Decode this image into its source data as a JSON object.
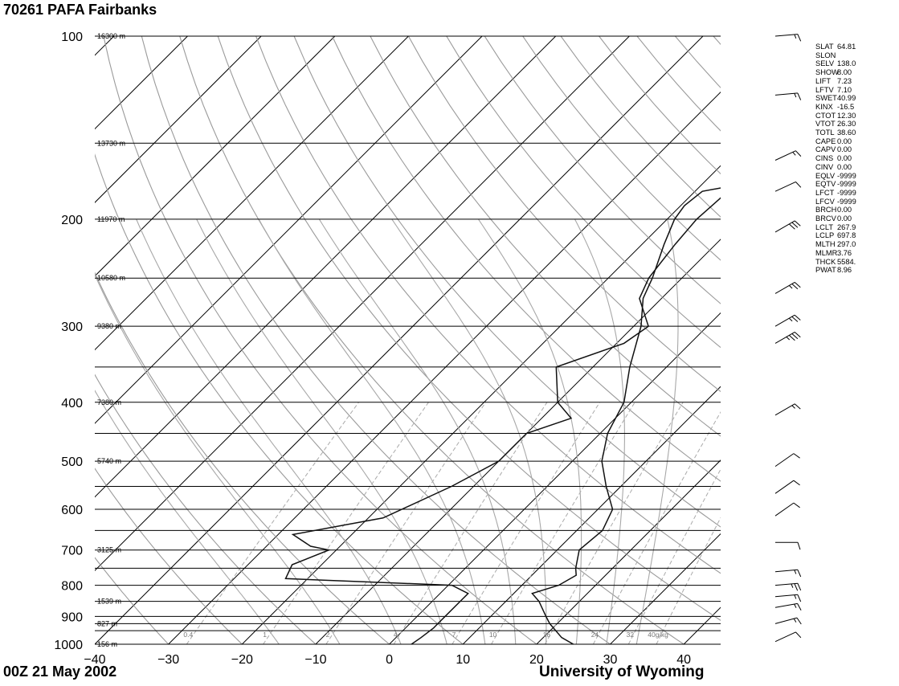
{
  "title": "70261 PAFA Fairbanks",
  "date_label": "00Z 21 May 2002",
  "credit": "University of Wyoming",
  "indices": [
    {
      "name": "SLAT",
      "value": "64.81"
    },
    {
      "name": "SLON",
      "value": ""
    },
    {
      "name": "SELV",
      "value": "138.0"
    },
    {
      "name": "SHOW",
      "value": "8.00"
    },
    {
      "name": "LIFT",
      "value": "7.23"
    },
    {
      "name": "LFTV",
      "value": "7.10"
    },
    {
      "name": "SWET",
      "value": "40.99"
    },
    {
      "name": "KINX",
      "value": "-16.5"
    },
    {
      "name": "CTOT",
      "value": "12.30"
    },
    {
      "name": "VTOT",
      "value": "26.30"
    },
    {
      "name": "TOTL",
      "value": "38.60"
    },
    {
      "name": "CAPE",
      "value": "0.00"
    },
    {
      "name": "CAPV",
      "value": "0.00"
    },
    {
      "name": "CINS",
      "value": "0.00"
    },
    {
      "name": "CINV",
      "value": "0.00"
    },
    {
      "name": "EQLV",
      "value": "-9999"
    },
    {
      "name": "EQTV",
      "value": "-9999"
    },
    {
      "name": "LFCT",
      "value": "-9999"
    },
    {
      "name": "LFCV",
      "value": "-9999"
    },
    {
      "name": "BRCH",
      "value": "0.00"
    },
    {
      "name": "BRCV",
      "value": "0.00"
    },
    {
      "name": "LCLT",
      "value": "267.9"
    },
    {
      "name": "LCLP",
      "value": "697.8"
    },
    {
      "name": "MLTH",
      "value": "297.0"
    },
    {
      "name": "MLMR",
      "value": "3.76"
    },
    {
      "name": "THCK",
      "value": "5584."
    },
    {
      "name": "PWAT",
      "value": "8.96"
    }
  ],
  "chart_data": {
    "type": "line",
    "title": "70261 PAFA Fairbanks",
    "xlabel": "",
    "ylabel": "",
    "xlim": [
      -40,
      45
    ],
    "ylim": [
      1000,
      100
    ],
    "y_scale": "log",
    "x_ticks": [
      "−40",
      "−30",
      "−20",
      "−10",
      "0",
      "10",
      "20",
      "30",
      "40"
    ],
    "pressure_labels": [
      "100",
      "200",
      "300",
      "400",
      "500",
      "600",
      "700",
      "800",
      "900",
      "1000"
    ],
    "height_labels": [
      {
        "p": 100,
        "text": "16300 m"
      },
      {
        "p": 150,
        "text": "13730 m"
      },
      {
        "p": 200,
        "text": "11970 m"
      },
      {
        "p": 250,
        "text": "10580 m"
      },
      {
        "p": 300,
        "text": "9380 m"
      },
      {
        "p": 400,
        "text": "7380 m"
      },
      {
        "p": 500,
        "text": "5740 m"
      },
      {
        "p": 700,
        "text": "3125 m"
      },
      {
        "p": 850,
        "text": "1539 m"
      },
      {
        "p": 925,
        "text": "827 m"
      },
      {
        "p": 1000,
        "text": "156 m"
      }
    ],
    "mixing_ratio_labels": [
      "0.4",
      "1",
      "2",
      "4",
      "7",
      "10",
      "16",
      "24",
      "32",
      "40g/kg"
    ],
    "series": [
      {
        "name": "",
        "color": "#111111",
        "points": [
          [
            1000,
            3.0
          ],
          [
            975,
            3.4
          ],
          [
            940,
            3.8
          ],
          [
            925,
            3.8
          ],
          [
            905,
            3.8
          ],
          [
            850,
            3.8
          ],
          [
            825,
            3.8
          ],
          [
            800,
            0.5
          ],
          [
            780,
            -23.0
          ],
          [
            740,
            -24.0
          ],
          [
            700,
            -21.0
          ],
          [
            690,
            -24.0
          ],
          [
            660,
            -28.0
          ],
          [
            620,
            -18.0
          ],
          [
            550,
            -13.0
          ],
          [
            500,
            -10.0
          ],
          [
            450,
            -10.0
          ],
          [
            425,
            -6.0
          ],
          [
            400,
            -10.0
          ],
          [
            350,
            -15.0
          ],
          [
            320,
            -9.0
          ],
          [
            300,
            -8.0
          ],
          [
            270,
            -13.0
          ],
          [
            250,
            -14.5
          ],
          [
            220,
            -15.5
          ],
          [
            200,
            -16.0
          ],
          [
            180,
            -15.5
          ],
          [
            170,
            -9.0
          ],
          [
            150,
            -6.0
          ],
          [
            120,
            -5.0
          ],
          [
            100,
            -3.5
          ]
        ]
      },
      {
        "name": "",
        "color": "#111111",
        "points": [
          [
            1000,
            25.0
          ],
          [
            975,
            22.5
          ],
          [
            925,
            19.0
          ],
          [
            900,
            17.5
          ],
          [
            850,
            14.5
          ],
          [
            825,
            12.5
          ],
          [
            800,
            15.0
          ],
          [
            770,
            16.0
          ],
          [
            750,
            15.0
          ],
          [
            700,
            13.0
          ],
          [
            650,
            13.5
          ],
          [
            600,
            12.0
          ],
          [
            550,
            8.0
          ],
          [
            500,
            4.0
          ],
          [
            450,
            1.0
          ],
          [
            400,
            -1.0
          ],
          [
            350,
            -5.0
          ],
          [
            300,
            -9.0
          ],
          [
            270,
            -12.5
          ],
          [
            250,
            -14.0
          ],
          [
            220,
            -17.0
          ],
          [
            200,
            -19.0
          ],
          [
            190,
            -19.5
          ],
          [
            180,
            -19.0
          ],
          [
            170,
            -10.0
          ],
          [
            150,
            0.0
          ],
          [
            140,
            -5.0
          ],
          [
            120,
            -7.0
          ],
          [
            100,
            -10.5
          ]
        ]
      }
    ],
    "wind_barbs": [
      {
        "p": 100,
        "dir": 265,
        "kt": 15
      },
      {
        "p": 125,
        "dir": 265,
        "kt": 15
      },
      {
        "p": 160,
        "dir": 245,
        "kt": 15
      },
      {
        "p": 180,
        "dir": 245,
        "kt": 10
      },
      {
        "p": 210,
        "dir": 240,
        "kt": 30
      },
      {
        "p": 265,
        "dir": 240,
        "kt": 25
      },
      {
        "p": 300,
        "dir": 240,
        "kt": 25
      },
      {
        "p": 320,
        "dir": 240,
        "kt": 35
      },
      {
        "p": 420,
        "dir": 240,
        "kt": 15
      },
      {
        "p": 510,
        "dir": 235,
        "kt": 10
      },
      {
        "p": 565,
        "dir": 235,
        "kt": 10
      },
      {
        "p": 615,
        "dir": 235,
        "kt": 10
      },
      {
        "p": 680,
        "dir": 270,
        "kt": 10
      },
      {
        "p": 760,
        "dir": 265,
        "kt": 15
      },
      {
        "p": 800,
        "dir": 265,
        "kt": 25
      },
      {
        "p": 835,
        "dir": 265,
        "kt": 15
      },
      {
        "p": 870,
        "dir": 260,
        "kt": 15
      },
      {
        "p": 925,
        "dir": 255,
        "kt": 15
      },
      {
        "p": 990,
        "dir": 245,
        "kt": 10
      }
    ]
  }
}
